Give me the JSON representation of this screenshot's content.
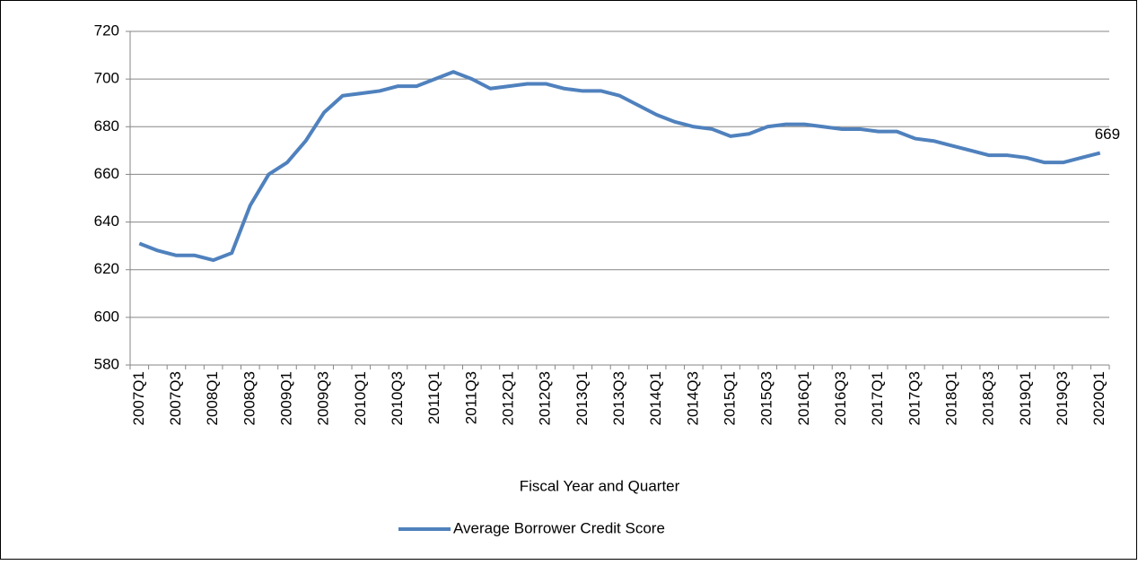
{
  "chart_data": {
    "type": "line",
    "x_label": "Fiscal Year and Quarter",
    "categories": [
      "2007Q1",
      null,
      "2007Q3",
      null,
      "2008Q1",
      null,
      "2008Q3",
      null,
      "2009Q1",
      null,
      "2009Q3",
      null,
      "2010Q1",
      null,
      "2010Q3",
      null,
      "2011Q1",
      null,
      "2011Q3",
      null,
      "2012Q1",
      null,
      "2012Q3",
      null,
      "2013Q1",
      null,
      "2013Q3",
      null,
      "2014Q1",
      null,
      "2014Q3",
      null,
      "2015Q1",
      null,
      "2015Q3",
      null,
      "2016Q1",
      null,
      "2016Q3",
      null,
      "2017Q1",
      null,
      "2017Q3",
      null,
      "2018Q1",
      null,
      "2018Q3",
      null,
      "2019Q1",
      null,
      "2019Q3",
      null,
      "2020Q1"
    ],
    "series": [
      {
        "name": "Average Borrower Credit Score",
        "color": "#4f81bd",
        "values": [
          631,
          628,
          626,
          626,
          624,
          627,
          647,
          660,
          665,
          674,
          686,
          693,
          694,
          695,
          697,
          697,
          700,
          703,
          700,
          696,
          697,
          698,
          698,
          696,
          695,
          695,
          693,
          689,
          685,
          682,
          680,
          679,
          676,
          677,
          680,
          681,
          681,
          680,
          679,
          679,
          678,
          678,
          675,
          674,
          672,
          670,
          668,
          668,
          667,
          665,
          665,
          667,
          669
        ]
      }
    ],
    "data_label": "last",
    "ylim": [
      580,
      720
    ],
    "yticks": [
      580,
      600,
      620,
      640,
      660,
      680,
      700,
      720
    ],
    "grid": true,
    "legend": "bottom"
  }
}
